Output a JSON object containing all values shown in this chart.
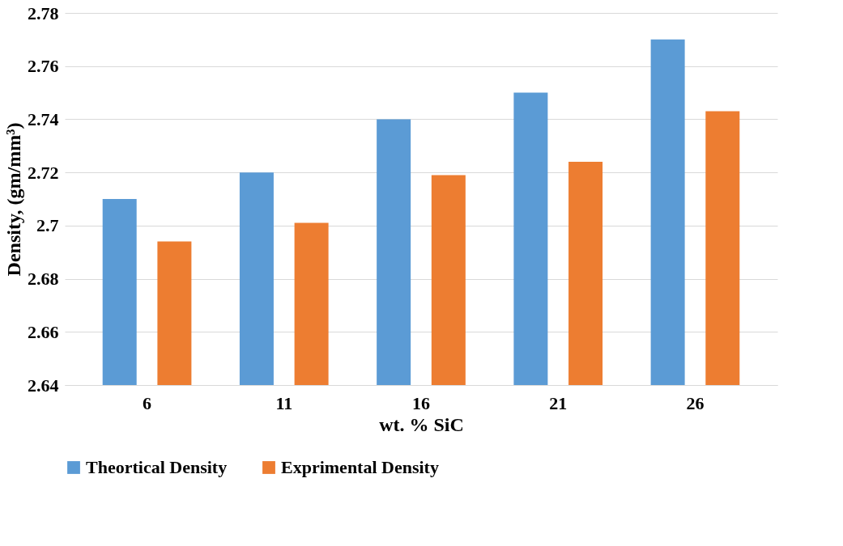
{
  "chart_data": {
    "type": "bar",
    "xlabel": "wt. % SiC",
    "ylabel": "Density, (gm/mm³)",
    "categories": [
      "6",
      "11",
      "16",
      "21",
      "26"
    ],
    "series": [
      {
        "name": "Theortical Density",
        "color": "#5b9bd5",
        "values": [
          2.71,
          2.72,
          2.74,
          2.75,
          2.77
        ]
      },
      {
        "name": "Exprimental Density",
        "color": "#ed7d31",
        "values": [
          2.694,
          2.701,
          2.719,
          2.724,
          2.743
        ]
      }
    ],
    "ylim": [
      2.64,
      2.78
    ],
    "yticks": [
      2.64,
      2.66,
      2.68,
      {
        "value": 2.7,
        "label": "2.7"
      },
      2.72,
      2.74,
      2.76,
      2.78
    ],
    "grid": "y",
    "legend": "bottom"
  }
}
